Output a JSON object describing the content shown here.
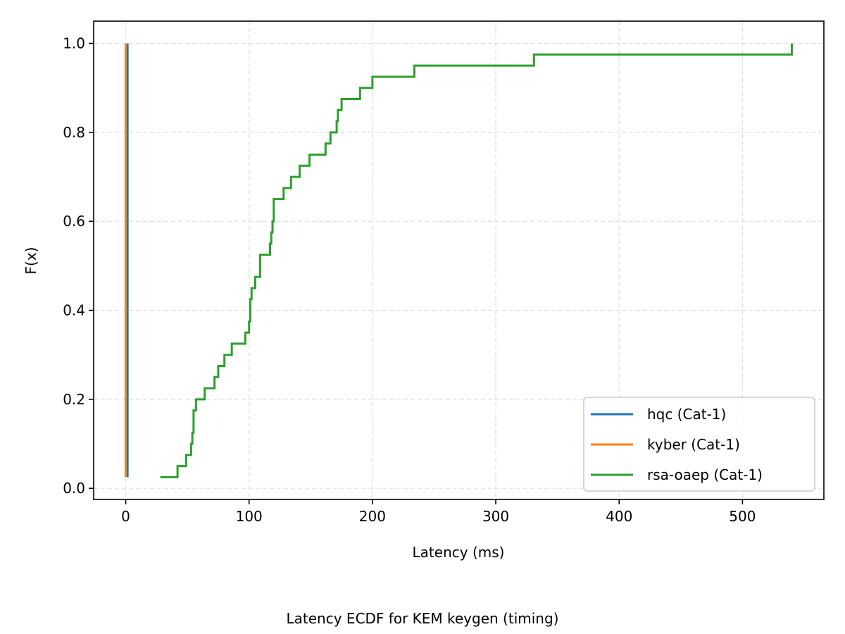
{
  "chart_data": {
    "type": "line",
    "drawstyle": "steps-post",
    "caption": "Latency ECDF for KEM keygen (timing)",
    "xlabel": "Latency (ms)",
    "ylabel": "F(x)",
    "xlim": [
      -26,
      566
    ],
    "ylim": [
      -0.025,
      1.05
    ],
    "xticks": [
      0,
      100,
      200,
      300,
      400,
      500
    ],
    "yticks": [
      0.0,
      0.2,
      0.4,
      0.6,
      0.8,
      1.0
    ],
    "xtick_labels": [
      "0",
      "100",
      "200",
      "300",
      "400",
      "500"
    ],
    "ytick_labels": [
      "0.0",
      "0.2",
      "0.4",
      "0.6",
      "0.8",
      "1.0"
    ],
    "grid": true,
    "legend_position": "lower-right",
    "series": [
      {
        "name": "hqc (Cat-1)",
        "color": "#1f77b4",
        "x": [
          1.5,
          1.5
        ],
        "y": [
          0.025,
          1.0
        ]
      },
      {
        "name": "kyber (Cat-1)",
        "color": "#ff7f0e",
        "x": [
          0,
          0
        ],
        "y": [
          0.025,
          1.0
        ]
      },
      {
        "name": "rsa-oaep (Cat-1)",
        "color": "#2ca02c",
        "x": [
          28,
          42,
          49,
          53,
          54,
          55,
          57,
          64,
          72,
          75,
          80,
          86,
          97,
          100,
          101,
          102,
          105,
          109,
          117,
          118,
          119,
          120,
          128,
          134,
          141,
          149,
          162,
          166,
          171,
          172,
          173,
          175,
          190,
          200,
          234,
          331,
          540
        ],
        "y": [
          0.025,
          0.05,
          0.075,
          0.1,
          0.125,
          0.175,
          0.2,
          0.225,
          0.25,
          0.275,
          0.3,
          0.325,
          0.35,
          0.375,
          0.425,
          0.45,
          0.475,
          0.525,
          0.55,
          0.575,
          0.6,
          0.65,
          0.675,
          0.7,
          0.725,
          0.75,
          0.775,
          0.8,
          0.825,
          0.85,
          0.85,
          0.875,
          0.9,
          0.925,
          0.95,
          0.975,
          1.0
        ]
      }
    ]
  }
}
